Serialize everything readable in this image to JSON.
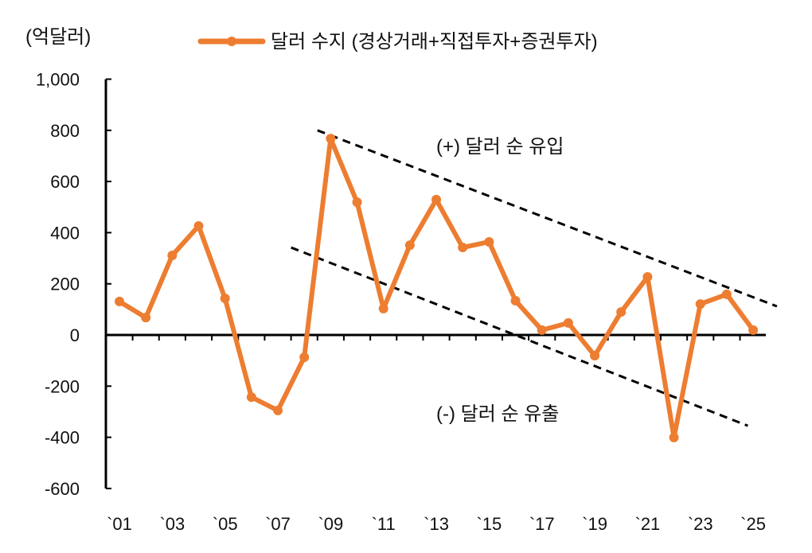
{
  "chart_data": {
    "type": "line",
    "unit_label": "(억달러)",
    "legend_position": "top",
    "grid": false,
    "color": "#ED7D31",
    "series": [
      {
        "name": "달러 수지 (경상거래+직접투자+증권투자)",
        "x": [
          2001,
          2002,
          2003,
          2004,
          2005,
          2006,
          2007,
          2008,
          2009,
          2010,
          2011,
          2012,
          2013,
          2014,
          2015,
          2016,
          2017,
          2018,
          2019,
          2020,
          2021,
          2022,
          2023,
          2024,
          2025
        ],
        "values": [
          131,
          68,
          311,
          426,
          143,
          -243,
          -295,
          -87,
          768,
          519,
          103,
          351,
          529,
          342,
          364,
          134,
          19,
          47,
          -81,
          90,
          227,
          -401,
          121,
          159,
          19
        ]
      }
    ],
    "xlim": [
      2001,
      2025
    ],
    "ylim": [
      -600,
      1000
    ],
    "yticks": [
      "1,000",
      "800",
      "600",
      "400",
      "200",
      "0",
      "-200",
      "-400",
      "-600"
    ],
    "ytick_values": [
      1000,
      800,
      600,
      400,
      200,
      0,
      -200,
      -400,
      -600
    ],
    "xticks": [
      "`01",
      "`03",
      "`05",
      "`07",
      "`09",
      "`11",
      "`13",
      "`15",
      "`17",
      "`19",
      "`21",
      "`23",
      "`25"
    ],
    "xtick_values": [
      2001,
      2003,
      2005,
      2007,
      2009,
      2011,
      2013,
      2015,
      2017,
      2019,
      2021,
      2023,
      2025
    ],
    "trend_lines": [
      {
        "x": [
          2008.5,
          2025.9
        ],
        "y": [
          800,
          112
        ],
        "style": "dashed"
      },
      {
        "x": [
          2007.5,
          2024.8
        ],
        "y": [
          342,
          -355
        ],
        "style": "dashed"
      }
    ],
    "annotations": [
      "(+) 달러 순 유입",
      "(-) 달러 순 유출"
    ]
  }
}
